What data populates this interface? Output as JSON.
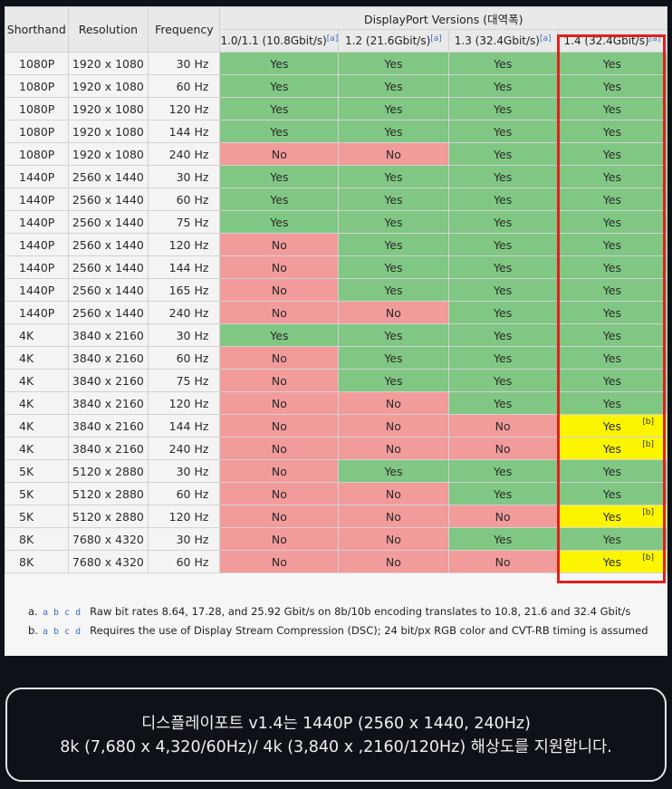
{
  "table": {
    "headers": {
      "shorthand": "Shorthand",
      "resolution": "Resolution",
      "frequency": "Frequency",
      "group": "DisplayPort Versions (대역폭)"
    },
    "versions": [
      {
        "label": "1.0/1.1 (10.8Gbit/s)",
        "note": "[a]"
      },
      {
        "label": "1.2 (21.6Gbit/s)",
        "note": "[a]"
      },
      {
        "label": "1.3 (32.4Gbit/s)",
        "note": "[a]"
      },
      {
        "label": "1.4 (32.4Gbit/s)",
        "note": "[a]"
      }
    ],
    "rows": [
      {
        "shorthand": "1080P",
        "resolution": "1920 x 1080",
        "frequency": "30 Hz",
        "support": [
          "Yes",
          "Yes",
          "Yes",
          "Yes"
        ],
        "dsc": false
      },
      {
        "shorthand": "1080P",
        "resolution": "1920 x 1080",
        "frequency": "60 Hz",
        "support": [
          "Yes",
          "Yes",
          "Yes",
          "Yes"
        ],
        "dsc": false
      },
      {
        "shorthand": "1080P",
        "resolution": "1920 x 1080",
        "frequency": "120 Hz",
        "support": [
          "Yes",
          "Yes",
          "Yes",
          "Yes"
        ],
        "dsc": false
      },
      {
        "shorthand": "1080P",
        "resolution": "1920 x 1080",
        "frequency": "144 Hz",
        "support": [
          "Yes",
          "Yes",
          "Yes",
          "Yes"
        ],
        "dsc": false
      },
      {
        "shorthand": "1080P",
        "resolution": "1920 x 1080",
        "frequency": "240 Hz",
        "support": [
          "No",
          "No",
          "Yes",
          "Yes"
        ],
        "dsc": false
      },
      {
        "shorthand": "1440P",
        "resolution": "2560 x 1440",
        "frequency": "30 Hz",
        "support": [
          "Yes",
          "Yes",
          "Yes",
          "Yes"
        ],
        "dsc": false
      },
      {
        "shorthand": "1440P",
        "resolution": "2560 x 1440",
        "frequency": "60 Hz",
        "support": [
          "Yes",
          "Yes",
          "Yes",
          "Yes"
        ],
        "dsc": false
      },
      {
        "shorthand": "1440P",
        "resolution": "2560 x 1440",
        "frequency": "75 Hz",
        "support": [
          "Yes",
          "Yes",
          "Yes",
          "Yes"
        ],
        "dsc": false
      },
      {
        "shorthand": "1440P",
        "resolution": "2560 x 1440",
        "frequency": "120 Hz",
        "support": [
          "No",
          "Yes",
          "Yes",
          "Yes"
        ],
        "dsc": false
      },
      {
        "shorthand": "1440P",
        "resolution": "2560 x 1440",
        "frequency": "144 Hz",
        "support": [
          "No",
          "Yes",
          "Yes",
          "Yes"
        ],
        "dsc": false
      },
      {
        "shorthand": "1440P",
        "resolution": "2560 x 1440",
        "frequency": "165 Hz",
        "support": [
          "No",
          "Yes",
          "Yes",
          "Yes"
        ],
        "dsc": false
      },
      {
        "shorthand": "1440P",
        "resolution": "2560 x 1440",
        "frequency": "240 Hz",
        "support": [
          "No",
          "No",
          "Yes",
          "Yes"
        ],
        "dsc": false
      },
      {
        "shorthand": "4K",
        "resolution": "3840 x 2160",
        "frequency": "30 Hz",
        "support": [
          "Yes",
          "Yes",
          "Yes",
          "Yes"
        ],
        "dsc": false
      },
      {
        "shorthand": "4K",
        "resolution": "3840 x 2160",
        "frequency": "60 Hz",
        "support": [
          "No",
          "Yes",
          "Yes",
          "Yes"
        ],
        "dsc": false
      },
      {
        "shorthand": "4K",
        "resolution": "3840 x 2160",
        "frequency": "75 Hz",
        "support": [
          "No",
          "Yes",
          "Yes",
          "Yes"
        ],
        "dsc": false
      },
      {
        "shorthand": "4K",
        "resolution": "3840 x 2160",
        "frequency": "120 Hz",
        "support": [
          "No",
          "No",
          "Yes",
          "Yes"
        ],
        "dsc": false
      },
      {
        "shorthand": "4K",
        "resolution": "3840 x 2160",
        "frequency": "144 Hz",
        "support": [
          "No",
          "No",
          "No",
          "Yes"
        ],
        "dsc": true
      },
      {
        "shorthand": "4K",
        "resolution": "3840 x 2160",
        "frequency": "240 Hz",
        "support": [
          "No",
          "No",
          "No",
          "Yes"
        ],
        "dsc": true
      },
      {
        "shorthand": "5K",
        "resolution": "5120 x 2880",
        "frequency": "30 Hz",
        "support": [
          "No",
          "Yes",
          "Yes",
          "Yes"
        ],
        "dsc": false
      },
      {
        "shorthand": "5K",
        "resolution": "5120 x 2880",
        "frequency": "60 Hz",
        "support": [
          "No",
          "No",
          "Yes",
          "Yes"
        ],
        "dsc": false
      },
      {
        "shorthand": "5K",
        "resolution": "5120 x 2880",
        "frequency": "120 Hz",
        "support": [
          "No",
          "No",
          "No",
          "Yes"
        ],
        "dsc": true
      },
      {
        "shorthand": "8K",
        "resolution": "7680 x 4320",
        "frequency": "30 Hz",
        "support": [
          "No",
          "No",
          "Yes",
          "Yes"
        ],
        "dsc": false
      },
      {
        "shorthand": "8K",
        "resolution": "7680 x 4320",
        "frequency": "60 Hz",
        "support": [
          "No",
          "No",
          "No",
          "Yes"
        ],
        "dsc": true
      }
    ],
    "dsc_note": "[b]"
  },
  "footnotes": [
    {
      "marker": "a.",
      "letters": "a b c d",
      "text": "Raw bit rates 8.64, 17.28, and 25.92 Gbit/s on 8b/10b encoding translates to 10.8, 21.6 and 32.4 Gbit/s"
    },
    {
      "marker": "b.",
      "letters": "a b c d",
      "text": "Requires the use of Display Stream Compression (DSC); 24 bit/px RGB color and CVT-RB timing is assumed"
    }
  ],
  "caption": {
    "line1": "디스플레이포트 v1.4는 1440P (2560 x 1440, 240Hz)",
    "line2": "8k (7,680 x 4,320/60Hz)/ 4k (3,840 x ,2160/120Hz) 해상도를 지원합니다."
  },
  "colors": {
    "yes": "#80c783",
    "no": "#f29b9b",
    "dsc": "#fbf600",
    "highlight": "#e0201f",
    "background": "#0f1118"
  }
}
